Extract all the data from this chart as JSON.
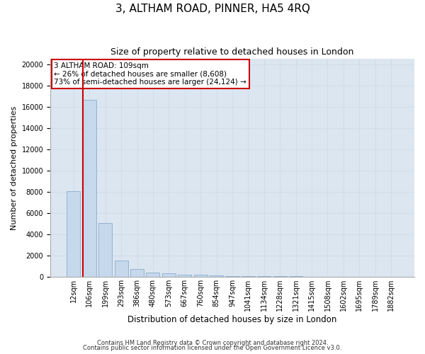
{
  "title": "3, ALTHAM ROAD, PINNER, HA5 4RQ",
  "subtitle": "Size of property relative to detached houses in London",
  "xlabel": "Distribution of detached houses by size in London",
  "ylabel": "Number of detached properties",
  "categories": [
    "12sqm",
    "106sqm",
    "199sqm",
    "293sqm",
    "386sqm",
    "480sqm",
    "573sqm",
    "667sqm",
    "760sqm",
    "854sqm",
    "947sqm",
    "1041sqm",
    "1134sqm",
    "1228sqm",
    "1321sqm",
    "1415sqm",
    "1508sqm",
    "1602sqm",
    "1695sqm",
    "1789sqm",
    "1882sqm"
  ],
  "values": [
    8050,
    16620,
    5050,
    1500,
    700,
    380,
    280,
    200,
    160,
    120,
    75,
    50,
    30,
    18,
    12,
    8,
    6,
    5,
    4,
    3,
    2
  ],
  "bar_color": "#c5d8ec",
  "bar_edge_color": "#8aadcc",
  "grid_color": "#d0dde8",
  "background_color": "#dce6f1",
  "property_line_color": "#cc0000",
  "property_line_bar_index": 1,
  "annotation_line1": "3 ALTHAM ROAD: 109sqm",
  "annotation_line2": "← 26% of detached houses are smaller (8,608)",
  "annotation_line3": "73% of semi-detached houses are larger (24,124) →",
  "annotation_box_color": "#cc0000",
  "ylim": [
    0,
    20500
  ],
  "yticks": [
    0,
    2000,
    4000,
    6000,
    8000,
    10000,
    12000,
    14000,
    16000,
    18000,
    20000
  ],
  "footnote1": "Contains HM Land Registry data © Crown copyright and database right 2024.",
  "footnote2": "Contains public sector information licensed under the Open Government Licence v3.0.",
  "title_fontsize": 11,
  "subtitle_fontsize": 9,
  "xlabel_fontsize": 8.5,
  "ylabel_fontsize": 8,
  "tick_fontsize": 7,
  "annotation_fontsize": 7.5,
  "footnote_fontsize": 6
}
